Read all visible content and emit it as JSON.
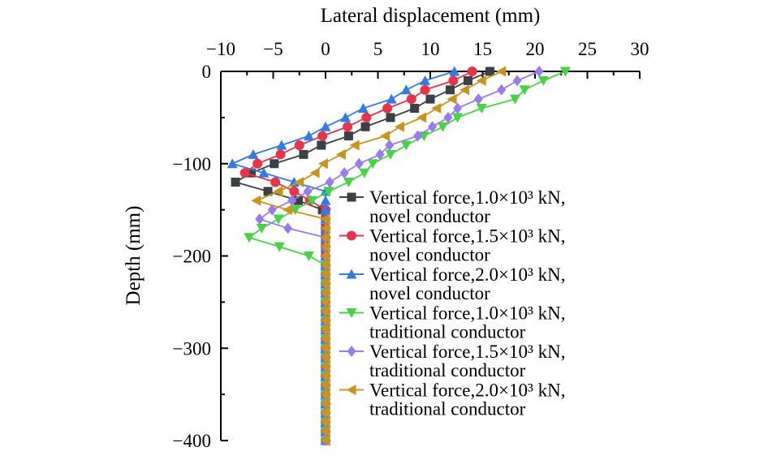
{
  "chart_data": {
    "type": "line",
    "title": "",
    "xlabel": "Lateral displacement (mm)",
    "ylabel": "Depth (mm)",
    "xlim": [
      -10,
      30
    ],
    "ylim": [
      -400,
      0
    ],
    "x_ticks": [
      -10,
      -5,
      0,
      5,
      10,
      15,
      20,
      25,
      30
    ],
    "y_ticks": [
      0,
      -100,
      -200,
      -300,
      -400
    ],
    "x_tick_labels": [
      "−10",
      "−5",
      "0",
      "5",
      "10",
      "15",
      "20",
      "25",
      "30"
    ],
    "y_tick_labels": [
      "0",
      "−100",
      "−200",
      "−300",
      "−400"
    ],
    "x_axis_position": "top",
    "grid": false,
    "legend_placement": "right",
    "depth": [
      0,
      -10,
      -20,
      -30,
      -40,
      -50,
      -60,
      -70,
      -80,
      -90,
      -100,
      -110,
      -120,
      -130,
      -140,
      -150,
      -160,
      -170,
      -180,
      -190,
      -200,
      -210,
      -220,
      -230,
      -240,
      -250,
      -260,
      -270,
      -280,
      -290,
      -300,
      -310,
      -320,
      -330,
      -340,
      -350,
      -360,
      -370,
      -380,
      -390,
      -400
    ],
    "series": [
      {
        "name_line1": "Vertical force,1.0×10³ kN,",
        "name_line2": "novel conductor",
        "color": "#3a4145",
        "marker": "square",
        "values": [
          15.7,
          13.6,
          11.9,
          10.0,
          8.5,
          6.2,
          3.8,
          2.2,
          -0.4,
          -2.1,
          -4.9,
          -7.1,
          -8.6,
          -5.5,
          -2.6,
          -0.3,
          0,
          0,
          0,
          0,
          0,
          0,
          0,
          0,
          0,
          0,
          0,
          0,
          0,
          0,
          0,
          0,
          0,
          0,
          0,
          0,
          0,
          0,
          0,
          0,
          0
        ]
      },
      {
        "name_line1": "Vertical force,1.5×10³ kN,",
        "name_line2": "novel conductor",
        "color": "#e8334a",
        "marker": "circle",
        "values": [
          14.0,
          12.2,
          9.5,
          8.2,
          5.9,
          3.9,
          2.1,
          -0.3,
          -2.5,
          -4.3,
          -6.5,
          -7.7,
          -4.8,
          -3.0,
          -1.5,
          0,
          0,
          0,
          0,
          0,
          0,
          0,
          0,
          0,
          0,
          0,
          0,
          0,
          0,
          0,
          0,
          0,
          0,
          0,
          0,
          0,
          0,
          0,
          0,
          0,
          0
        ]
      },
      {
        "name_line1": "Vertical force,2.0×10³ kN,",
        "name_line2": "novel conductor",
        "color": "#2f7be8",
        "marker": "triangle-up",
        "values": [
          12.3,
          9.5,
          7.7,
          6.3,
          3.6,
          1.9,
          0,
          -1.6,
          -4.2,
          -6.9,
          -8.9,
          -5.9,
          -3.0,
          0,
          0,
          0,
          0,
          0,
          0,
          0,
          0,
          0,
          0,
          0,
          0,
          0,
          0,
          0,
          0,
          0,
          0,
          0,
          0,
          0,
          0,
          0,
          0,
          0,
          0,
          0,
          0
        ]
      },
      {
        "name_line1": "Vertical force,1.0×10³ kN,",
        "name_line2": "traditional conductor",
        "color": "#44d444",
        "marker": "triangle-down",
        "values": [
          22.9,
          20.8,
          19.0,
          18.1,
          14.9,
          12.6,
          11.2,
          9.4,
          7.7,
          6.2,
          4.5,
          3.7,
          2.2,
          0.3,
          -1.3,
          -2.9,
          -4.5,
          -6.1,
          -7.3,
          -4.4,
          -1.6,
          0,
          0,
          0,
          0,
          0,
          0,
          0,
          0,
          0,
          0,
          0,
          0,
          0,
          0,
          0,
          0,
          0,
          0,
          0,
          0
        ]
      },
      {
        "name_line1": "Vertical force,1.5×10³ kN,",
        "name_line2": "traditional conductor",
        "color": "#9a7bef",
        "marker": "diamond",
        "values": [
          20.4,
          18.3,
          16.8,
          14.6,
          12.6,
          11.7,
          10.2,
          8.8,
          6.1,
          5.2,
          3.2,
          1.8,
          0.4,
          -1.7,
          -3.2,
          -5.1,
          -6.3,
          -3.6,
          0,
          0,
          0,
          0,
          0,
          0,
          0,
          0,
          0,
          0,
          0,
          0,
          0,
          0,
          0,
          0,
          0,
          0,
          0,
          0,
          0,
          0,
          0
        ]
      },
      {
        "name_line1": "Vertical force,2.0×10³ kN,",
        "name_line2": "traditional conductor",
        "color": "#c8941a",
        "marker": "triangle-left",
        "values": [
          16.8,
          14.9,
          13.3,
          12.1,
          10.6,
          9.2,
          7.1,
          5.7,
          2.8,
          1.5,
          -0.2,
          -1.0,
          -2.5,
          -4.5,
          -6.6,
          -3.6,
          0,
          0,
          0,
          0,
          0,
          0,
          0,
          0,
          0,
          0,
          0,
          0,
          0,
          0,
          0,
          0,
          0,
          0,
          0,
          0,
          0,
          0,
          0,
          0,
          0
        ]
      }
    ]
  }
}
